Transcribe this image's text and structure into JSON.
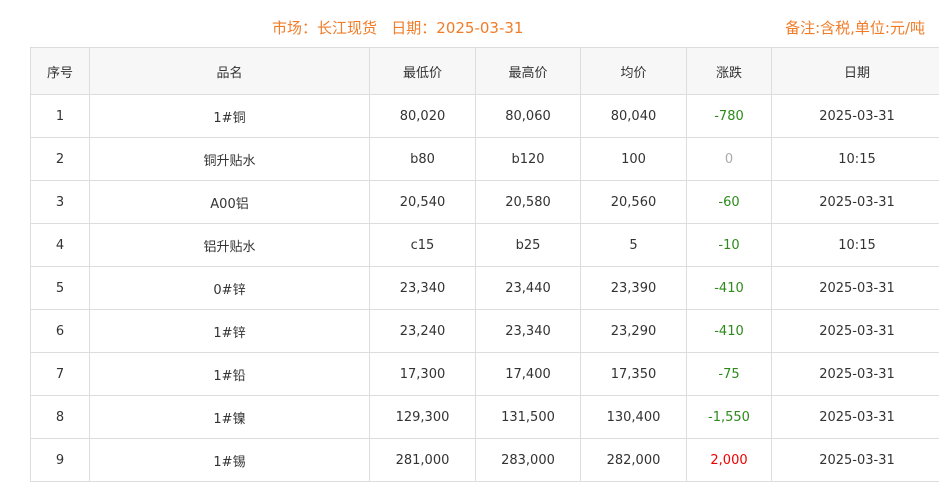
{
  "header": {
    "title": "市场：长江现货   日期：2025-03-31",
    "note": "备注:含税,单位:元/吨"
  },
  "colors": {
    "accent": "#f07c28",
    "down": "#2d8a1b",
    "up": "#e00000",
    "flat": "#aaaaaa"
  },
  "table": {
    "columns": [
      "序号",
      "品名",
      "最低价",
      "最高价",
      "均价",
      "涨跌",
      "日期"
    ],
    "rows": [
      [
        "1",
        "1#铜",
        "80,020",
        "80,060",
        "80,040",
        "-780",
        "2025-03-31"
      ],
      [
        "2",
        "铜升贴水",
        "b80",
        "b120",
        "100",
        "0",
        "10:15"
      ],
      [
        "3",
        "A00铝",
        "20,540",
        "20,580",
        "20,560",
        "-60",
        "2025-03-31"
      ],
      [
        "4",
        "铝升贴水",
        "c15",
        "b25",
        "5",
        "-10",
        "10:15"
      ],
      [
        "5",
        "0#锌",
        "23,340",
        "23,440",
        "23,390",
        "-410",
        "2025-03-31"
      ],
      [
        "6",
        "1#锌",
        "23,240",
        "23,340",
        "23,290",
        "-410",
        "2025-03-31"
      ],
      [
        "7",
        "1#铅",
        "17,300",
        "17,400",
        "17,350",
        "-75",
        "2025-03-31"
      ],
      [
        "8",
        "1#镍",
        "129,300",
        "131,500",
        "130,400",
        "-1,550",
        "2025-03-31"
      ],
      [
        "9",
        "1#锡",
        "281,000",
        "283,000",
        "282,000",
        "2,000",
        "2025-03-31"
      ]
    ]
  }
}
